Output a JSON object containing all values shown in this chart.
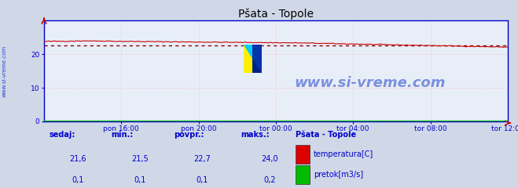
{
  "title": "Pšata - Topole",
  "bg_color": "#d0d8e8",
  "plot_bg_color": "#e8eef8",
  "grid_color": "#ffaaaa",
  "spine_color": "#0000cc",
  "x_labels": [
    "pon 16:00",
    "pon 20:00",
    "tor 00:00",
    "tor 04:00",
    "tor 08:00",
    "tor 12:00"
  ],
  "ylim": [
    0,
    30
  ],
  "yticks": [
    0,
    10,
    20
  ],
  "temp_color": "#cc0000",
  "flow_color": "#00bb00",
  "avg_line_color": "#880000",
  "watermark_text": "www.si-vreme.com",
  "watermark_color": "#2244cc",
  "sidebar_text": "www.si-vreme.com",
  "legend_title": "Pšata - Topole",
  "legend_items": [
    "temperatura[C]",
    "pretok[m3/s]"
  ],
  "legend_colors": [
    "#dd0000",
    "#00bb00"
  ],
  "stats_headers": [
    "sedaj:",
    "min.:",
    "povpr.:",
    "maks.:"
  ],
  "stats_temp": [
    "21,6",
    "21,5",
    "22,7",
    "24,0"
  ],
  "stats_flow": [
    "0,1",
    "0,1",
    "0,1",
    "0,2"
  ],
  "temp_avg": 22.7,
  "temp_min": 21.5,
  "temp_max": 24.0,
  "flow_avg": 0.1,
  "flow_min": 0.05,
  "flow_max": 0.2,
  "n_points": 289
}
